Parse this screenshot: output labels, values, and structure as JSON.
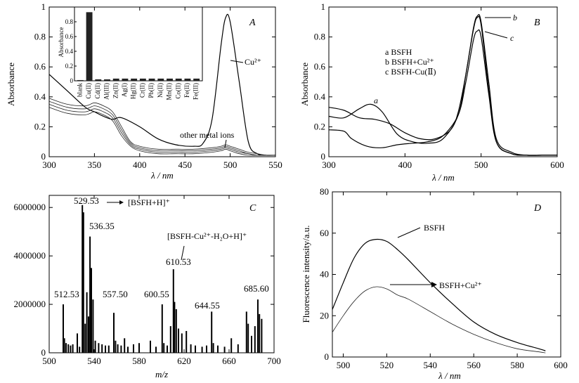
{
  "chart_data": [
    {
      "id": "A",
      "type": "line",
      "panel_label": "A",
      "xlabel": "λ / nm",
      "ylabel": "Absorbance",
      "xlim": [
        300,
        550
      ],
      "ylim": [
        0,
        1.0
      ],
      "xticks": [
        300,
        350,
        400,
        450,
        500,
        550
      ],
      "yticks": [
        0,
        0.2,
        0.4,
        0.6,
        0.8,
        1.0
      ],
      "annotations": [
        {
          "text": "Cu²⁺",
          "x": 512,
          "y": 0.64
        },
        {
          "text": "other metal ions",
          "x": 470,
          "y": 0.13
        }
      ],
      "series": [
        {
          "name": "Cu²⁺",
          "x": [
            300,
            320,
            340,
            350,
            360,
            370,
            380,
            400,
            420,
            440,
            460,
            470,
            480,
            490,
            495,
            500,
            510,
            520,
            530,
            540,
            550
          ],
          "y": [
            0.55,
            0.44,
            0.33,
            0.3,
            0.27,
            0.25,
            0.26,
            0.2,
            0.12,
            0.08,
            0.07,
            0.09,
            0.25,
            0.75,
            0.93,
            0.9,
            0.5,
            0.1,
            0.02,
            0.01,
            0.01
          ]
        },
        {
          "x": [
            300,
            320,
            340,
            350,
            360,
            370,
            380,
            390,
            400,
            420,
            440,
            460,
            480,
            490,
            495,
            500,
            510,
            520,
            530,
            540,
            550
          ],
          "y": [
            0.39,
            0.35,
            0.34,
            0.36,
            0.34,
            0.3,
            0.2,
            0.1,
            0.07,
            0.05,
            0.05,
            0.05,
            0.06,
            0.07,
            0.08,
            0.07,
            0.05,
            0.03,
            0.02,
            0.01,
            0.01
          ]
        },
        {
          "x": [
            300,
            320,
            340,
            350,
            360,
            370,
            380,
            390,
            400,
            420,
            440,
            460,
            480,
            490,
            495,
            500,
            510,
            520,
            530,
            540,
            550
          ],
          "y": [
            0.37,
            0.33,
            0.32,
            0.34,
            0.32,
            0.28,
            0.18,
            0.09,
            0.06,
            0.04,
            0.04,
            0.04,
            0.05,
            0.06,
            0.07,
            0.06,
            0.04,
            0.02,
            0.01,
            0.01,
            0.01
          ]
        },
        {
          "x": [
            300,
            320,
            340,
            350,
            360,
            370,
            380,
            390,
            400,
            420,
            440,
            460,
            480,
            490,
            495,
            500,
            510,
            520,
            530,
            540,
            550
          ],
          "y": [
            0.35,
            0.31,
            0.3,
            0.32,
            0.3,
            0.26,
            0.16,
            0.08,
            0.05,
            0.03,
            0.03,
            0.03,
            0.04,
            0.05,
            0.06,
            0.05,
            0.03,
            0.02,
            0.01,
            0.01,
            0.01
          ]
        },
        {
          "x": [
            300,
            320,
            340,
            350,
            360,
            370,
            380,
            390,
            400,
            420,
            440,
            460,
            480,
            490,
            495,
            500,
            510,
            520,
            530,
            540,
            550
          ],
          "y": [
            0.33,
            0.29,
            0.28,
            0.3,
            0.28,
            0.24,
            0.14,
            0.07,
            0.04,
            0.02,
            0.02,
            0.02,
            0.03,
            0.04,
            0.05,
            0.04,
            0.02,
            0.01,
            0.01,
            0.01,
            0.01
          ]
        }
      ],
      "inset": {
        "type": "bar",
        "ylabel": "Absorbance",
        "ylim": [
          0,
          1.0
        ],
        "yticks": [
          0,
          0.2,
          0.4,
          0.6,
          0.8
        ],
        "categories": [
          "blank",
          "Cu(II)",
          "Cd(II)",
          "Al(III)",
          "Zn(II)",
          "Ag(I)",
          "Hg(II)",
          "Cr(II)",
          "Pb(II)",
          "Ni(II)",
          "Mn(II)",
          "Co(II)",
          "Fe(II)",
          "Fe(III)"
        ],
        "values": [
          0.01,
          0.93,
          0.02,
          0.02,
          0.03,
          0.03,
          0.03,
          0.03,
          0.03,
          0.03,
          0.03,
          0.03,
          0.03,
          0.03
        ]
      }
    },
    {
      "id": "B",
      "type": "line",
      "panel_label": "B",
      "xlabel": "λ / nm",
      "ylabel": "Absorbance",
      "xlim": [
        300,
        600
      ],
      "ylim": [
        0,
        1.0
      ],
      "xticks": [
        300,
        400,
        500,
        600
      ],
      "yticks": [
        0,
        0.2,
        0.4,
        0.6,
        0.8,
        1.0
      ],
      "legend": [
        "a  BSFH",
        "b  BSFH+Cu²⁺",
        "c  BSFH-Cu(Ⅱ)"
      ],
      "curve_labels": [
        "a",
        "b",
        "c"
      ],
      "series": [
        {
          "name": "a",
          "x": [
            300,
            320,
            340,
            355,
            370,
            390,
            410,
            430,
            450,
            470,
            480,
            490,
            495,
            500,
            510,
            520,
            540,
            560,
            580,
            600
          ],
          "y": [
            0.27,
            0.26,
            0.32,
            0.35,
            0.3,
            0.15,
            0.1,
            0.09,
            0.12,
            0.28,
            0.55,
            0.85,
            0.93,
            0.88,
            0.45,
            0.1,
            0.02,
            0.01,
            0.01,
            0.01
          ]
        },
        {
          "name": "b",
          "x": [
            300,
            320,
            340,
            360,
            380,
            400,
            420,
            440,
            460,
            470,
            480,
            490,
            495,
            500,
            510,
            520,
            540,
            560,
            580,
            600
          ],
          "y": [
            0.33,
            0.31,
            0.26,
            0.25,
            0.22,
            0.16,
            0.12,
            0.12,
            0.18,
            0.3,
            0.55,
            0.86,
            0.94,
            0.9,
            0.5,
            0.12,
            0.03,
            0.01,
            0.01,
            0.01
          ]
        },
        {
          "name": "c",
          "x": [
            300,
            320,
            330,
            350,
            370,
            390,
            410,
            430,
            450,
            470,
            480,
            490,
            495,
            500,
            510,
            520,
            540,
            560,
            580,
            600
          ],
          "y": [
            0.18,
            0.17,
            0.12,
            0.07,
            0.06,
            0.08,
            0.09,
            0.1,
            0.14,
            0.28,
            0.5,
            0.78,
            0.84,
            0.8,
            0.42,
            0.1,
            0.02,
            0.01,
            0.01,
            0.01
          ]
        }
      ]
    },
    {
      "id": "C",
      "type": "bar",
      "panel_label": "C",
      "xlabel": "m/z",
      "ylabel": "",
      "xlim": [
        500,
        700
      ],
      "ylim": [
        0,
        6500000
      ],
      "xticks": [
        500,
        540,
        580,
        620,
        660,
        700
      ],
      "yticks": [
        0,
        2000000,
        4000000,
        6000000
      ],
      "ytick_labels": [
        "0",
        "2000000",
        "4000000",
        "6000000"
      ],
      "peak_labels": [
        "529.53",
        "536.35",
        "512.53",
        "557.50",
        "600.55",
        "610.53",
        "644.55",
        "685.60"
      ],
      "annotations": [
        "[BSFH+H]⁺",
        "[BSFH-Cu²⁺-H₂O+H]⁺"
      ],
      "peaks_mz": [
        512.5,
        513.5,
        515,
        517,
        519,
        521,
        525,
        527,
        529.5,
        530.5,
        532,
        533.5,
        535,
        536.3,
        537.5,
        539,
        541,
        544,
        547,
        550,
        553,
        557.5,
        559,
        561,
        564,
        567,
        570,
        575,
        580,
        590,
        595,
        600.5,
        602,
        605,
        608,
        610.5,
        611.5,
        613,
        615,
        618,
        622,
        626,
        630,
        636,
        640,
        644.5,
        646,
        650,
        656,
        662,
        668,
        675.5,
        677,
        680,
        683,
        685.6,
        687,
        689
      ],
      "peaks_int": [
        2000000,
        600000,
        400000,
        350000,
        300000,
        350000,
        800000,
        250000,
        6100000,
        5800000,
        1200000,
        2500000,
        1500000,
        4800000,
        3500000,
        2200000,
        500000,
        400000,
        350000,
        300000,
        300000,
        1650000,
        500000,
        350000,
        300000,
        600000,
        250000,
        350000,
        400000,
        500000,
        250000,
        2000000,
        400000,
        300000,
        1100000,
        3450000,
        2100000,
        1800000,
        1000000,
        800000,
        900000,
        350000,
        300000,
        250000,
        300000,
        1700000,
        400000,
        300000,
        250000,
        600000,
        350000,
        1700000,
        1200000,
        700000,
        1100000,
        2200000,
        1600000,
        1400000
      ]
    },
    {
      "id": "D",
      "type": "line",
      "panel_label": "D",
      "xlabel": "λ / nm",
      "ylabel": "Fluorescence intensity/a.u.",
      "xlim": [
        495,
        600
      ],
      "ylim": [
        0,
        80
      ],
      "xticks": [
        500,
        520,
        540,
        560,
        580,
        600
      ],
      "yticks": [
        0,
        20,
        40,
        60,
        80
      ],
      "series": [
        {
          "name": "BSFH",
          "x": [
            495,
            500,
            505,
            510,
            515,
            520,
            525,
            530,
            540,
            550,
            560,
            570,
            580,
            590,
            593
          ],
          "y": [
            23,
            36,
            48,
            55,
            57,
            56,
            52,
            47,
            36,
            26,
            17,
            11,
            7,
            4,
            3
          ]
        },
        {
          "name": "BSFH+Cu²⁺",
          "x": [
            495,
            500,
            505,
            510,
            515,
            520,
            525,
            530,
            540,
            550,
            560,
            570,
            580,
            590,
            593
          ],
          "y": [
            12,
            20,
            27,
            32,
            34,
            33,
            30,
            28,
            22,
            16,
            11,
            7,
            4,
            2.5,
            2
          ]
        }
      ]
    }
  ]
}
